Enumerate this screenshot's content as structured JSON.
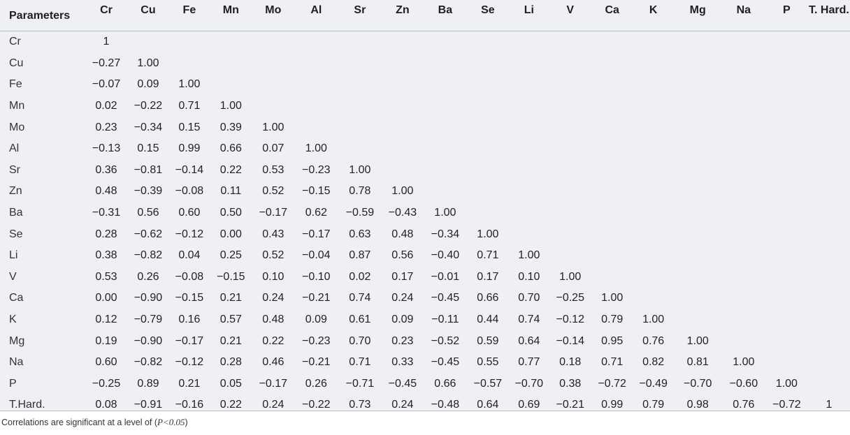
{
  "table": {
    "corner_header": "Parameters",
    "columns": [
      "Cr",
      "Cu",
      "Fe",
      "Mn",
      "Mo",
      "Al",
      "Sr",
      "Zn",
      "Ba",
      "Se",
      "Li",
      "V",
      "Ca",
      "K",
      "Mg",
      "Na",
      "P",
      "T. Hard."
    ],
    "rows": [
      {
        "label": "Cr",
        "values": [
          "1"
        ]
      },
      {
        "label": "Cu",
        "values": [
          "−0.27",
          "1.00"
        ]
      },
      {
        "label": "Fe",
        "values": [
          "−0.07",
          "0.09",
          "1.00"
        ]
      },
      {
        "label": "Mn",
        "values": [
          "0.02",
          "−0.22",
          "0.71",
          "1.00"
        ]
      },
      {
        "label": "Mo",
        "values": [
          "0.23",
          "−0.34",
          "0.15",
          "0.39",
          "1.00"
        ]
      },
      {
        "label": "Al",
        "values": [
          "−0.13",
          "0.15",
          "0.99",
          "0.66",
          "0.07",
          "1.00"
        ]
      },
      {
        "label": "Sr",
        "values": [
          "0.36",
          "−0.81",
          "−0.14",
          "0.22",
          "0.53",
          "−0.23",
          "1.00"
        ]
      },
      {
        "label": "Zn",
        "values": [
          "0.48",
          "−0.39",
          "−0.08",
          "0.11",
          "0.52",
          "−0.15",
          "0.78",
          "1.00"
        ]
      },
      {
        "label": "Ba",
        "values": [
          "−0.31",
          "0.56",
          "0.60",
          "0.50",
          "−0.17",
          "0.62",
          "−0.59",
          "−0.43",
          "1.00"
        ]
      },
      {
        "label": "Se",
        "values": [
          "0.28",
          "−0.62",
          "−0.12",
          "0.00",
          "0.43",
          "−0.17",
          "0.63",
          "0.48",
          "−0.34",
          "1.00"
        ]
      },
      {
        "label": "Li",
        "values": [
          "0.38",
          "−0.82",
          "0.04",
          "0.25",
          "0.52",
          "−0.04",
          "0.87",
          "0.56",
          "−0.40",
          "0.71",
          "1.00"
        ]
      },
      {
        "label": "V",
        "values": [
          "0.53",
          "0.26",
          "−0.08",
          "−0.15",
          "0.10",
          "−0.10",
          "0.02",
          "0.17",
          "−0.01",
          "0.17",
          "0.10",
          "1.00"
        ]
      },
      {
        "label": "Ca",
        "values": [
          "0.00",
          "−0.90",
          "−0.15",
          "0.21",
          "0.24",
          "−0.21",
          "0.74",
          "0.24",
          "−0.45",
          "0.66",
          "0.70",
          "−0.25",
          "1.00"
        ]
      },
      {
        "label": "K",
        "values": [
          "0.12",
          "−0.79",
          "0.16",
          "0.57",
          "0.48",
          "0.09",
          "0.61",
          "0.09",
          "−0.11",
          "0.44",
          "0.74",
          "−0.12",
          "0.79",
          "1.00"
        ]
      },
      {
        "label": "Mg",
        "values": [
          "0.19",
          "−0.90",
          "−0.17",
          "0.21",
          "0.22",
          "−0.23",
          "0.70",
          "0.23",
          "−0.52",
          "0.59",
          "0.64",
          "−0.14",
          "0.95",
          "0.76",
          "1.00"
        ]
      },
      {
        "label": "Na",
        "values": [
          "0.60",
          "−0.82",
          "−0.12",
          "0.28",
          "0.46",
          "−0.21",
          "0.71",
          "0.33",
          "−0.45",
          "0.55",
          "0.77",
          "0.18",
          "0.71",
          "0.82",
          "0.81",
          "1.00"
        ]
      },
      {
        "label": "P",
        "values": [
          "−0.25",
          "0.89",
          "0.21",
          "0.05",
          "−0.17",
          "0.26",
          "−0.71",
          "−0.45",
          "0.66",
          "−0.57",
          "−0.70",
          "0.38",
          "−0.72",
          "−0.49",
          "−0.70",
          "−0.60",
          "1.00"
        ]
      },
      {
        "label": "T.Hard.",
        "values": [
          "0.08",
          "−0.91",
          "−0.16",
          "0.22",
          "0.24",
          "−0.22",
          "0.73",
          "0.24",
          "−0.48",
          "0.64",
          "0.69",
          "−0.21",
          "0.99",
          "0.79",
          "0.98",
          "0.76",
          "−0.72",
          "1"
        ]
      }
    ]
  },
  "footnote": {
    "prefix": "Correlations are significant at a level of (",
    "pvalue": "P<0.05",
    "suffix": ")"
  }
}
